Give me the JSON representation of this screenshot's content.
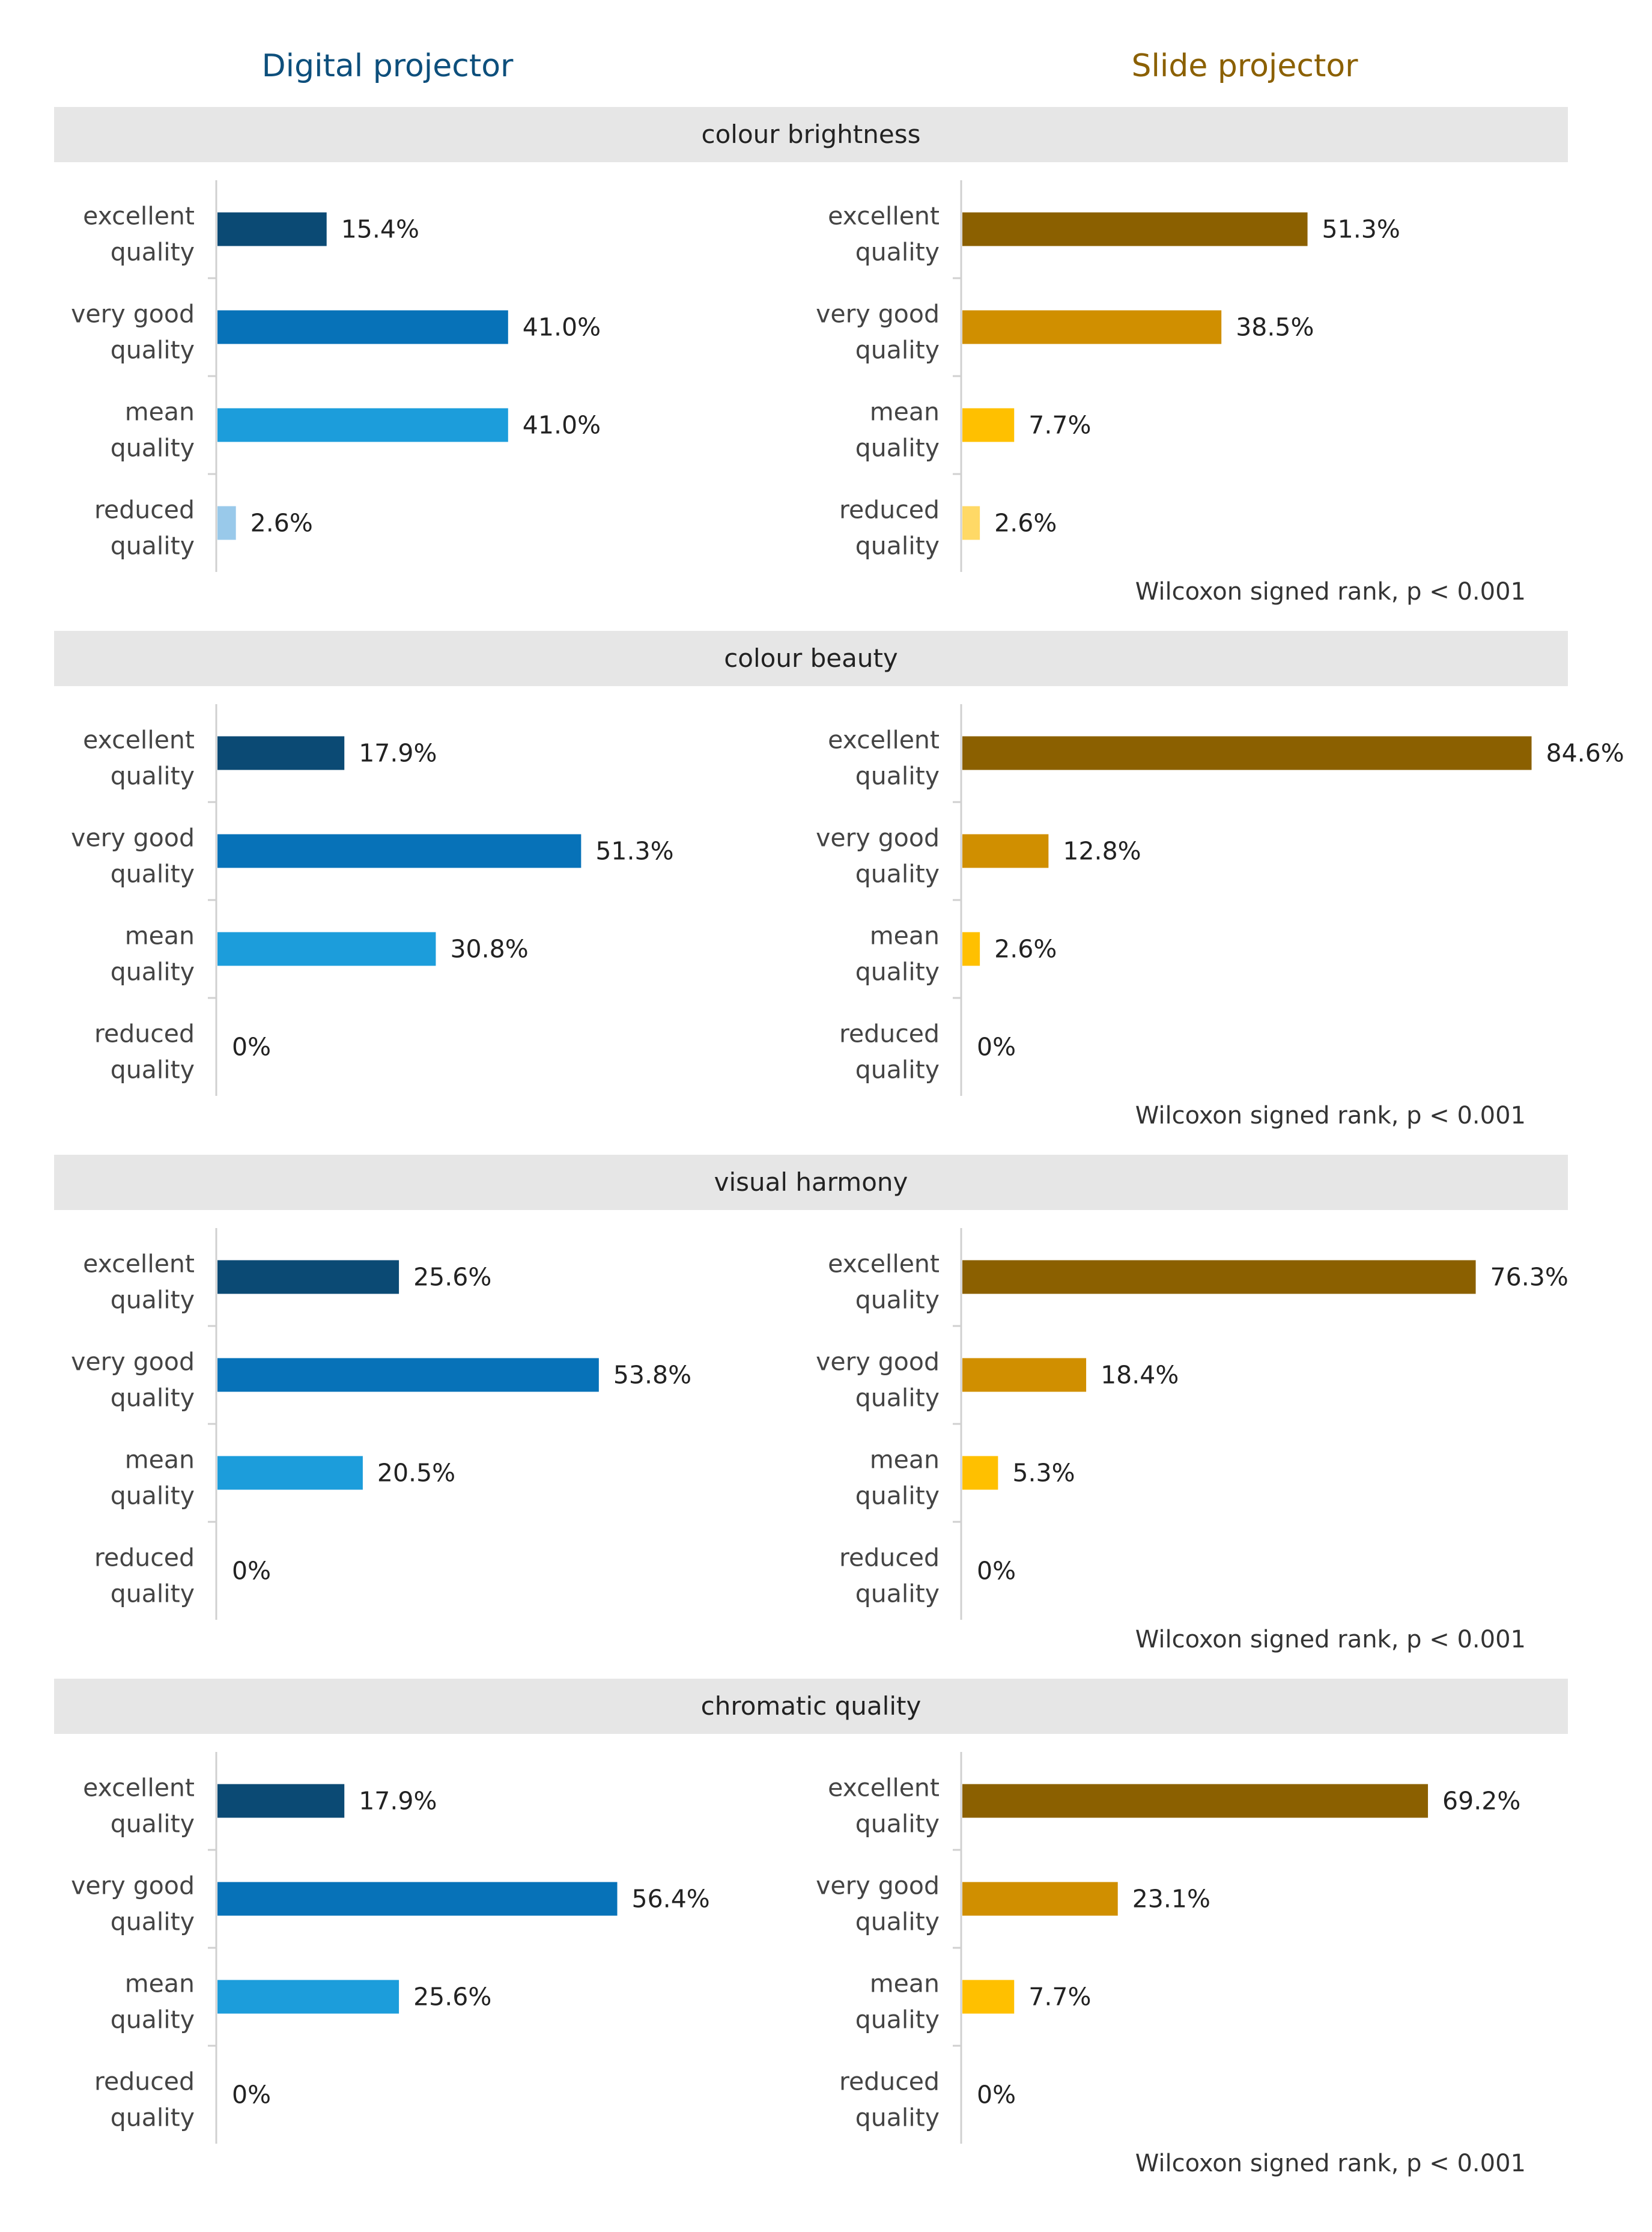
{
  "columns": {
    "left_title": "Digital projector",
    "right_title": "Slide projector",
    "left_color": "#0d4f7c",
    "right_color": "#8b6000"
  },
  "colors": {
    "digital": [
      "#0b4a74",
      "#0772b8",
      "#1c9ddb",
      "#99c9ea"
    ],
    "slide": [
      "#8b6000",
      "#d08f00",
      "#ffc000",
      "#ffd966"
    ]
  },
  "chart_data": [
    {
      "type": "bar",
      "orientation": "horizontal",
      "title": "colour brightness",
      "categories": [
        "excellent quality",
        "very good quality",
        "mean quality",
        "reduced quality"
      ],
      "series": [
        {
          "name": "Digital projector",
          "values": [
            15.4,
            41.0,
            41.0,
            2.6
          ],
          "labels": [
            "15.4%",
            "41.0%",
            "41.0%",
            "2.6%"
          ]
        },
        {
          "name": "Slide projector",
          "values": [
            51.3,
            38.5,
            7.7,
            2.6
          ],
          "labels": [
            "51.3%",
            "38.5%",
            "7.7%",
            "2.6%"
          ]
        }
      ],
      "note": "Wilcoxon signed rank, p < 0.001"
    },
    {
      "type": "bar",
      "orientation": "horizontal",
      "title": "colour beauty",
      "categories": [
        "excellent quality",
        "very good quality",
        "mean quality",
        "reduced quality"
      ],
      "series": [
        {
          "name": "Digital projector",
          "values": [
            17.9,
            51.3,
            30.8,
            0
          ],
          "labels": [
            "17.9%",
            "51.3%",
            "30.8%",
            "0%"
          ]
        },
        {
          "name": "Slide projector",
          "values": [
            84.6,
            12.8,
            2.6,
            0
          ],
          "labels": [
            "84.6%",
            "12.8%",
            "2.6%",
            "0%"
          ]
        }
      ],
      "note": "Wilcoxon signed rank, p < 0.001"
    },
    {
      "type": "bar",
      "orientation": "horizontal",
      "title": "visual harmony",
      "categories": [
        "excellent quality",
        "very good quality",
        "mean quality",
        "reduced quality"
      ],
      "series": [
        {
          "name": "Digital projector",
          "values": [
            25.6,
            53.8,
            20.5,
            0
          ],
          "labels": [
            "25.6%",
            "53.8%",
            "20.5%",
            "0%"
          ]
        },
        {
          "name": "Slide projector",
          "values": [
            76.3,
            18.4,
            5.3,
            0
          ],
          "labels": [
            "76.3%",
            "18.4%",
            "5.3%",
            "0%"
          ]
        }
      ],
      "note": "Wilcoxon signed rank, p < 0.001"
    },
    {
      "type": "bar",
      "orientation": "horizontal",
      "title": "chromatic quality",
      "categories": [
        "excellent quality",
        "very good quality",
        "mean quality",
        "reduced quality"
      ],
      "series": [
        {
          "name": "Digital projector",
          "values": [
            17.9,
            56.4,
            25.6,
            0
          ],
          "labels": [
            "17.9%",
            "56.4%",
            "25.6%",
            "0%"
          ]
        },
        {
          "name": "Slide projector",
          "values": [
            69.2,
            23.1,
            7.7,
            0
          ],
          "labels": [
            "69.2%",
            "23.1%",
            "7.7%",
            "0%"
          ]
        }
      ],
      "note": "Wilcoxon signed rank, p < 0.001"
    }
  ]
}
